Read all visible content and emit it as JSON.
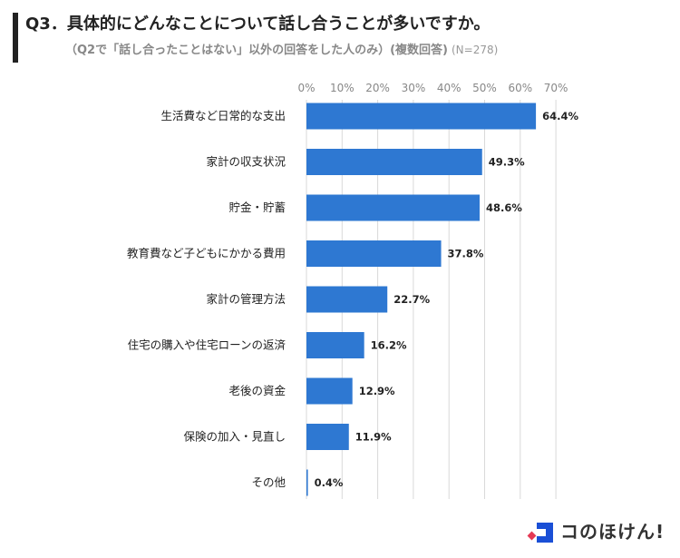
{
  "title": "Q3．具体的にどんなことについて話し合うことが多いですか。",
  "subtitle": "（Q2で「話し合ったことはない」以外の回答をした人のみ）(複数回答)",
  "sample_size": "(N=278)",
  "brand": {
    "name": "コのほけん!",
    "accent": "#1a4fd6",
    "accent2": "#e53955"
  },
  "colors": {
    "bar": "#2e78d2",
    "grid": "#d9d9d9",
    "tick": "#888888"
  },
  "chart_data": {
    "type": "bar",
    "orientation": "horizontal",
    "categories": [
      "生活費など日常的な支出",
      "家計の収支状況",
      "貯金・貯蓄",
      "教育費など子どもにかかる費用",
      "家計の管理方法",
      "住宅の購入や住宅ローンの返済",
      "老後の資金",
      "保険の加入・見直し",
      "その他"
    ],
    "values": [
      64.4,
      49.3,
      48.6,
      37.8,
      22.7,
      16.2,
      12.9,
      11.9,
      0.4
    ],
    "value_labels": [
      "64.4%",
      "49.3%",
      "48.6%",
      "37.8%",
      "22.7%",
      "16.2%",
      "12.9%",
      "11.9%",
      "0.4%"
    ],
    "xticks": [
      "0%",
      "10%",
      "20%",
      "30%",
      "40%",
      "50%",
      "60%",
      "70%"
    ],
    "xlim": [
      0,
      70
    ],
    "grid": true,
    "legend": "none"
  }
}
